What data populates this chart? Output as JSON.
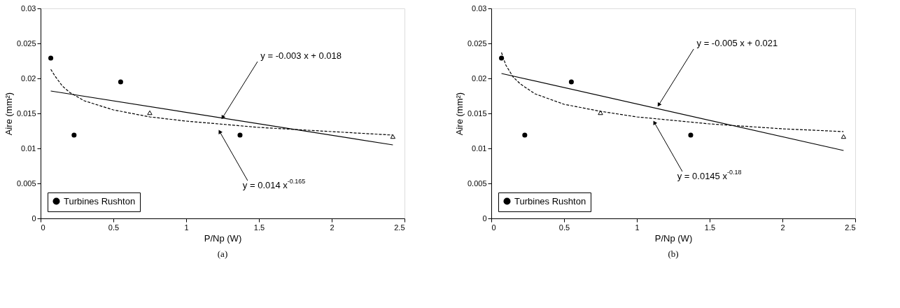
{
  "chart_data": [
    {
      "type": "scatter",
      "xlabel": "P/Np (W)",
      "ylabel": "Aire (mm²)",
      "xlim": [
        0,
        2.5
      ],
      "xticks": [
        0,
        0.5,
        1,
        1.5,
        2,
        2.5
      ],
      "ylim": [
        0,
        0.03
      ],
      "yticks": [
        0,
        0.005,
        0.01,
        0.015,
        0.02,
        0.025,
        0.03
      ],
      "grid": false,
      "legend": "bottom left",
      "annotations": [
        {
          "text": "y = -0.003 x + 0.018",
          "x": 1.25,
          "y": 0.0144
        },
        {
          "text": "y = 0.014 x$^{-0.165}$",
          "x": 1.23,
          "y": 0.0124
        },
        "(a)"
      ],
      "series": [
        {
          "name": "Turbines Rushton",
          "color": "#000000",
          "marker": "circle",
          "x": [
            0.07,
            0.23,
            0.55,
            1.37
          ],
          "values": [
            0.0229,
            0.0119,
            0.0195,
            0.0119
          ]
        },
        {
          "color": "#000000",
          "marker": "triangle",
          "x": [
            0.75,
            2.42
          ],
          "values": [
            0.0151,
            0.0117
          ]
        },
        {
          "type": "line",
          "color": "#000000",
          "line_style": "solid",
          "x": [
            0.07,
            2.42
          ],
          "values": [
            0.0182,
            0.0105
          ]
        },
        {
          "type": "line",
          "color": "#000000",
          "line_style": "dashed",
          "x": [
            0.07,
            0.1,
            0.15,
            0.2,
            0.3,
            0.5,
            0.75,
            1,
            1.5,
            2,
            2.42
          ],
          "values": [
            0.0213,
            0.0203,
            0.0189,
            0.018,
            0.0168,
            0.0155,
            0.0145,
            0.0139,
            0.013,
            0.0124,
            0.0119
          ]
        }
      ]
    },
    {
      "type": "scatter",
      "xlabel": "P/Np (W)",
      "ylabel": "Aire (mm²)",
      "xlim": [
        0,
        2.5
      ],
      "xticks": [
        0,
        0.5,
        1,
        1.5,
        2,
        2.5
      ],
      "ylim": [
        0,
        0.03
      ],
      "yticks": [
        0,
        0.005,
        0.01,
        0.015,
        0.02,
        0.025,
        0.03
      ],
      "grid": false,
      "legend": "bottom left",
      "annotations": [
        {
          "text": "y = -0.005 x + 0.021",
          "x": 1.15,
          "y": 0.0162
        },
        {
          "text": "y = 0.0145 x$^{-0.18}$",
          "x": 1.12,
          "y": 0.0137
        },
        "(b)"
      ],
      "series": [
        {
          "name": "Turbines Rushton",
          "color": "#000000",
          "marker": "circle",
          "x": [
            0.07,
            0.23,
            0.55,
            1.37
          ],
          "values": [
            0.0229,
            0.0119,
            0.0195,
            0.0119
          ]
        },
        {
          "color": "#000000",
          "marker": "triangle",
          "x": [
            0.75,
            2.42
          ],
          "values": [
            0.0151,
            0.0117
          ]
        },
        {
          "type": "line",
          "color": "#000000",
          "line_style": "solid",
          "x": [
            0.07,
            2.42
          ],
          "values": [
            0.0207,
            0.0097
          ]
        },
        {
          "type": "line",
          "color": "#000000",
          "line_style": "dashed",
          "x": [
            0.07,
            0.1,
            0.15,
            0.2,
            0.3,
            0.5,
            0.75,
            1,
            1.5,
            2,
            2.42
          ],
          "values": [
            0.0237,
            0.0219,
            0.0202,
            0.0192,
            0.0178,
            0.0163,
            0.0153,
            0.0145,
            0.0135,
            0.0128,
            0.0124
          ]
        }
      ]
    }
  ]
}
